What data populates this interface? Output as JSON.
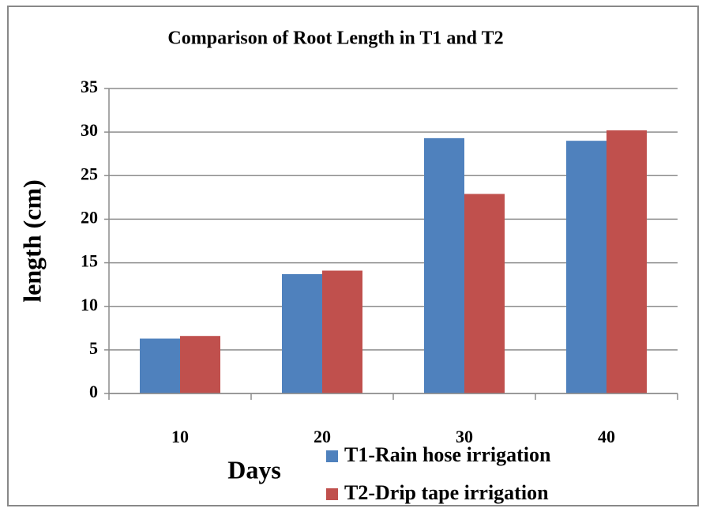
{
  "chart_data": {
    "type": "bar",
    "title": "Comparison of Root Length in  T1 and T2",
    "x_label": "Days",
    "y_label": "length (cm)",
    "categories": [
      "10",
      "20",
      "30",
      "40"
    ],
    "series": [
      {
        "name": "T1-Rain hose irrigation",
        "color": "#4f81bd",
        "values": [
          6.3,
          13.7,
          29.3,
          29.0
        ]
      },
      {
        "name": "T2-Drip tape irrigation",
        "color": "#c0504d",
        "values": [
          6.6,
          14.1,
          22.9,
          30.2
        ]
      }
    ],
    "ylim": [
      0,
      35
    ],
    "yticks": [
      0,
      5,
      10,
      15,
      20,
      25,
      30,
      35
    ],
    "grid": true,
    "legend": "bottom"
  }
}
